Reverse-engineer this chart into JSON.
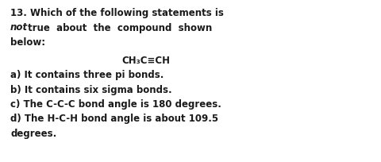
{
  "background_color": "#ffffff",
  "right_bg_color": "#d8d8d8",
  "text_color": "#1a1a1a",
  "font_family": "DejaVu Sans",
  "font_size": 8.5,
  "line1": "13. Which of the following statements is",
  "line2_italic": "not",
  "line2_rest": " true  about  the  compound  shown",
  "line3": "below:",
  "formula": "CH₃C≡CH",
  "answer_a": "a) It contains three pi bonds.",
  "answer_b": "b) It contains six sigma bonds.",
  "answer_c": "c) The C-C-C bond angle is 180 degrees.",
  "answer_d1": "d) The H-C-H bond angle is about 109.5",
  "answer_d2": "degrees."
}
